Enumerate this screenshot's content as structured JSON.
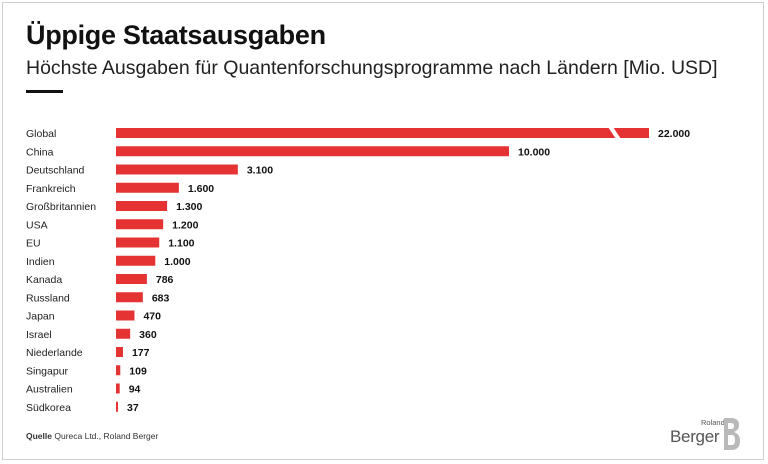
{
  "header": {
    "title": "Üppige Staatsausgaben",
    "subtitle": "Höchste Ausgaben für Quantenforschungsprogramme nach Ländern [Mio. USD]"
  },
  "footer": {
    "source_label": "Quelle",
    "source_text": "Qureca Ltd., Roland Berger"
  },
  "logo": {
    "top_word": "Roland",
    "main_word": "Berger",
    "letter": "B"
  },
  "colors": {
    "bar": "#e53333",
    "text": "#111111"
  },
  "chart_data": {
    "type": "bar",
    "orientation": "horizontal",
    "title": "Üppige Staatsausgaben",
    "subtitle": "Höchste Ausgaben für Quantenforschungsprogramme nach Ländern [Mio. USD]",
    "categories": [
      "Global",
      "China",
      "Deutschland",
      "Frankreich",
      "Großbritannien",
      "USA",
      "EU",
      "Indien",
      "Kanada",
      "Russland",
      "Japan",
      "Israel",
      "Niederlande",
      "Singapur",
      "Australien",
      "Südkorea"
    ],
    "values": [
      22000,
      10000,
      3100,
      1600,
      1300,
      1200,
      1100,
      1000,
      786,
      683,
      470,
      360,
      177,
      109,
      94,
      37
    ],
    "value_labels": [
      "22.000",
      "10.000",
      "3.100",
      "1.600",
      "1.300",
      "1.200",
      "1.100",
      "1.000",
      "786",
      "683",
      "470",
      "360",
      "177",
      "109",
      "94",
      "37"
    ],
    "axis_break": {
      "category": "Global"
    },
    "grid": false,
    "legend": "none"
  }
}
